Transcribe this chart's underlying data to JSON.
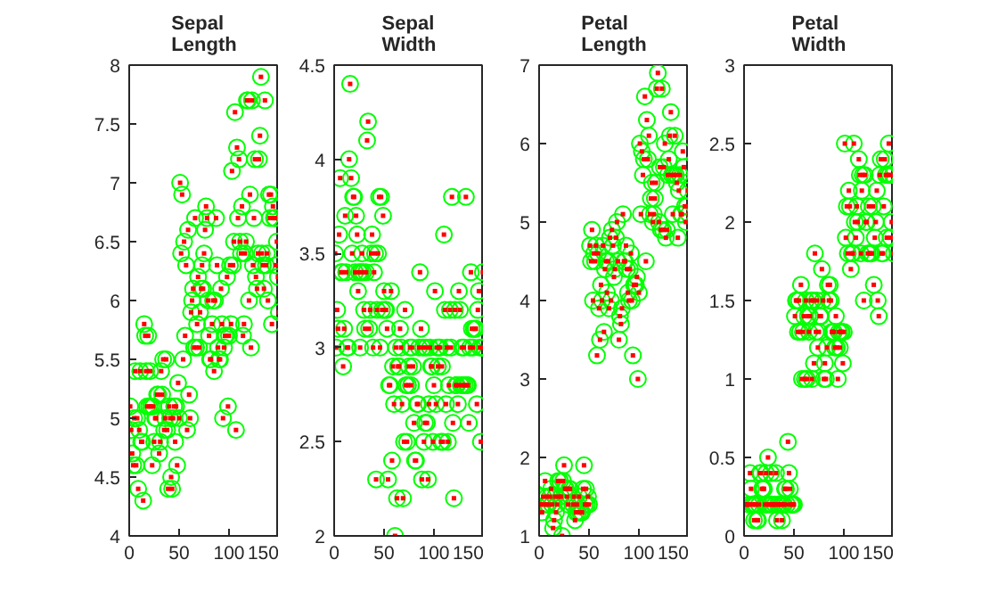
{
  "chart_data": [
    {
      "type": "scatter",
      "title": "Sepal Length",
      "xlim": [
        0,
        150
      ],
      "xticks": [
        0,
        50,
        100,
        150
      ],
      "ylim": [
        4,
        8
      ],
      "yticks": [
        4,
        4.5,
        5,
        5.5,
        6,
        6.5,
        7,
        7.5,
        8
      ],
      "grid": false,
      "x": [
        1,
        2,
        3,
        4,
        5,
        6,
        7,
        8,
        9,
        10,
        11,
        12,
        13,
        14,
        15,
        16,
        17,
        18,
        19,
        20,
        21,
        22,
        23,
        24,
        25,
        26,
        27,
        28,
        29,
        30,
        31,
        32,
        33,
        34,
        35,
        36,
        37,
        38,
        39,
        40,
        41,
        42,
        43,
        44,
        45,
        46,
        47,
        48,
        49,
        50,
        51,
        52,
        53,
        54,
        55,
        56,
        57,
        58,
        59,
        60,
        61,
        62,
        63,
        64,
        65,
        66,
        67,
        68,
        69,
        70,
        71,
        72,
        73,
        74,
        75,
        76,
        77,
        78,
        79,
        80,
        81,
        82,
        83,
        84,
        85,
        86,
        87,
        88,
        89,
        90,
        91,
        92,
        93,
        94,
        95,
        96,
        97,
        98,
        99,
        100,
        101,
        102,
        103,
        104,
        105,
        106,
        107,
        108,
        109,
        110,
        111,
        112,
        113,
        114,
        115,
        116,
        117,
        118,
        119,
        120,
        121,
        122,
        123,
        124,
        125,
        126,
        127,
        128,
        129,
        130,
        131,
        132,
        133,
        134,
        135,
        136,
        137,
        138,
        139,
        140,
        141,
        142,
        143,
        144,
        145,
        146,
        147,
        148,
        149,
        150
      ],
      "series": [
        {
          "color": "#00ff00",
          "marker": "circle",
          "values": [
            5.1,
            4.9,
            4.7,
            4.6,
            5.0,
            5.4,
            4.6,
            5.0,
            4.4,
            4.9,
            5.4,
            4.8,
            4.8,
            4.3,
            5.8,
            5.7,
            5.4,
            5.1,
            5.7,
            5.1,
            5.4,
            5.1,
            4.6,
            5.1,
            4.8,
            5.0,
            5.0,
            5.2,
            5.2,
            4.7,
            4.8,
            5.4,
            5.2,
            5.5,
            4.9,
            5.0,
            5.5,
            4.9,
            4.4,
            5.1,
            5.0,
            4.5,
            4.4,
            5.0,
            5.1,
            4.8,
            5.1,
            4.6,
            5.3,
            5.0,
            7.0,
            6.4,
            6.9,
            5.5,
            6.5,
            5.7,
            6.3,
            4.9,
            6.6,
            5.2,
            5.0,
            5.9,
            6.0,
            6.1,
            5.6,
            6.7,
            5.6,
            5.8,
            6.2,
            5.6,
            5.9,
            6.1,
            6.3,
            6.1,
            6.4,
            6.6,
            6.8,
            6.7,
            6.0,
            5.7,
            5.5,
            5.5,
            5.8,
            6.0,
            5.4,
            6.0,
            6.7,
            6.3,
            5.6,
            5.5,
            5.5,
            6.1,
            5.8,
            5.0,
            5.6,
            5.7,
            5.7,
            6.2,
            5.1,
            5.7,
            6.3,
            5.8,
            7.1,
            6.3,
            6.5,
            7.6,
            4.9,
            7.3,
            6.7,
            7.2,
            6.5,
            6.4,
            6.8,
            5.7,
            5.8,
            6.4,
            6.5,
            7.7,
            7.7,
            6.0,
            6.9,
            5.6,
            7.7,
            6.3,
            6.7,
            7.2,
            6.2,
            6.1,
            6.4,
            7.2,
            7.4,
            7.9,
            6.4,
            6.3,
            6.1,
            7.7,
            6.3,
            6.4,
            6.0,
            6.9,
            6.7,
            6.9,
            5.8,
            6.8,
            6.7,
            6.7,
            6.3,
            6.5,
            6.2,
            5.9
          ]
        },
        {
          "color": "#ff0000",
          "marker": "square",
          "values": [
            5.1,
            4.9,
            4.7,
            4.6,
            5.0,
            5.4,
            4.6,
            5.0,
            4.4,
            4.9,
            5.4,
            4.8,
            4.8,
            4.3,
            5.8,
            5.7,
            5.4,
            5.1,
            5.7,
            5.1,
            5.4,
            5.1,
            4.6,
            5.1,
            4.8,
            5.0,
            5.0,
            5.2,
            5.2,
            4.7,
            4.8,
            5.4,
            5.2,
            5.5,
            4.9,
            5.0,
            5.5,
            4.9,
            4.4,
            5.1,
            5.0,
            4.5,
            4.4,
            5.0,
            5.1,
            4.8,
            5.1,
            4.6,
            5.3,
            5.0,
            7.0,
            6.4,
            6.9,
            5.5,
            6.5,
            5.7,
            6.3,
            4.9,
            6.6,
            5.2,
            5.0,
            5.9,
            6.0,
            6.1,
            5.6,
            6.7,
            5.6,
            5.8,
            6.2,
            5.6,
            5.9,
            6.1,
            6.3,
            6.1,
            6.4,
            6.6,
            6.8,
            6.7,
            6.0,
            5.7,
            5.5,
            5.5,
            5.8,
            6.0,
            5.4,
            6.0,
            6.7,
            6.3,
            5.6,
            5.5,
            5.5,
            6.1,
            5.8,
            5.0,
            5.6,
            5.7,
            5.7,
            6.2,
            5.1,
            5.7,
            6.3,
            5.8,
            7.1,
            6.3,
            6.5,
            7.6,
            4.9,
            7.3,
            6.7,
            7.2,
            6.5,
            6.4,
            6.8,
            5.7,
            5.8,
            6.4,
            6.5,
            7.7,
            7.7,
            6.0,
            6.9,
            5.6,
            7.7,
            6.3,
            6.7,
            7.2,
            6.2,
            6.1,
            6.4,
            7.2,
            7.4,
            7.9,
            6.4,
            6.3,
            6.1,
            7.7,
            6.3,
            6.4,
            6.0,
            6.9,
            6.7,
            6.9,
            5.8,
            6.8,
            6.7,
            6.7,
            6.3,
            6.5,
            6.2,
            5.9
          ]
        }
      ]
    },
    {
      "type": "scatter",
      "title": "Sepal Width",
      "xlim": [
        0,
        150
      ],
      "xticks": [
        0,
        50,
        100,
        150
      ],
      "ylim": [
        2,
        4.5
      ],
      "yticks": [
        2,
        2.5,
        3,
        3.5,
        4,
        4.5
      ],
      "grid": false,
      "x": [
        1,
        2,
        3,
        4,
        5,
        6,
        7,
        8,
        9,
        10,
        11,
        12,
        13,
        14,
        15,
        16,
        17,
        18,
        19,
        20,
        21,
        22,
        23,
        24,
        25,
        26,
        27,
        28,
        29,
        30,
        31,
        32,
        33,
        34,
        35,
        36,
        37,
        38,
        39,
        40,
        41,
        42,
        43,
        44,
        45,
        46,
        47,
        48,
        49,
        50,
        51,
        52,
        53,
        54,
        55,
        56,
        57,
        58,
        59,
        60,
        61,
        62,
        63,
        64,
        65,
        66,
        67,
        68,
        69,
        70,
        71,
        72,
        73,
        74,
        75,
        76,
        77,
        78,
        79,
        80,
        81,
        82,
        83,
        84,
        85,
        86,
        87,
        88,
        89,
        90,
        91,
        92,
        93,
        94,
        95,
        96,
        97,
        98,
        99,
        100,
        101,
        102,
        103,
        104,
        105,
        106,
        107,
        108,
        109,
        110,
        111,
        112,
        113,
        114,
        115,
        116,
        117,
        118,
        119,
        120,
        121,
        122,
        123,
        124,
        125,
        126,
        127,
        128,
        129,
        130,
        131,
        132,
        133,
        134,
        135,
        136,
        137,
        138,
        139,
        140,
        141,
        142,
        143,
        144,
        145,
        146,
        147,
        148,
        149,
        150
      ],
      "series": [
        {
          "color": "#00ff00",
          "marker": "circle",
          "values": [
            3.5,
            3.0,
            3.2,
            3.1,
            3.6,
            3.9,
            3.4,
            3.4,
            2.9,
            3.1,
            3.7,
            3.4,
            3.0,
            3.0,
            4.0,
            4.4,
            3.9,
            3.5,
            3.8,
            3.8,
            3.4,
            3.7,
            3.6,
            3.3,
            3.4,
            3.0,
            3.4,
            3.5,
            3.4,
            3.2,
            3.1,
            3.4,
            4.1,
            4.2,
            3.1,
            3.2,
            3.5,
            3.6,
            3.0,
            3.4,
            3.5,
            2.3,
            3.2,
            3.5,
            3.8,
            3.0,
            3.8,
            3.2,
            3.7,
            3.3,
            3.2,
            3.2,
            3.1,
            2.3,
            2.8,
            2.8,
            3.3,
            2.4,
            2.9,
            2.7,
            2.0,
            3.0,
            2.2,
            2.9,
            2.9,
            3.1,
            3.0,
            2.7,
            2.2,
            2.5,
            3.2,
            2.8,
            2.5,
            2.8,
            2.9,
            3.0,
            2.8,
            3.0,
            2.9,
            2.6,
            2.4,
            2.4,
            2.7,
            2.7,
            3.0,
            3.4,
            3.1,
            2.3,
            3.0,
            2.5,
            2.6,
            3.0,
            2.6,
            2.3,
            2.7,
            3.0,
            2.9,
            2.9,
            2.5,
            2.8,
            3.3,
            2.7,
            3.0,
            2.9,
            3.0,
            3.0,
            2.5,
            2.9,
            2.5,
            3.6,
            3.2,
            2.7,
            3.0,
            2.5,
            2.8,
            3.2,
            3.0,
            3.8,
            2.6,
            2.2,
            3.2,
            2.8,
            2.8,
            2.7,
            3.3,
            3.2,
            2.8,
            3.0,
            2.8,
            3.0,
            2.8,
            3.8,
            2.8,
            2.8,
            2.6,
            3.0,
            3.4,
            3.1,
            3.0,
            3.1,
            3.1,
            3.1,
            2.7,
            3.2,
            3.3,
            3.0,
            2.5,
            3.0,
            3.4,
            3.0
          ]
        },
        {
          "color": "#ff0000",
          "marker": "square",
          "values": [
            3.5,
            3.0,
            3.2,
            3.1,
            3.6,
            3.9,
            3.4,
            3.4,
            2.9,
            3.1,
            3.7,
            3.4,
            3.0,
            3.0,
            4.0,
            4.4,
            3.9,
            3.5,
            3.8,
            3.8,
            3.4,
            3.7,
            3.6,
            3.3,
            3.4,
            3.0,
            3.4,
            3.5,
            3.4,
            3.2,
            3.1,
            3.4,
            4.1,
            4.2,
            3.1,
            3.2,
            3.5,
            3.6,
            3.0,
            3.4,
            3.5,
            2.3,
            3.2,
            3.5,
            3.8,
            3.0,
            3.8,
            3.2,
            3.7,
            3.3,
            3.2,
            3.2,
            3.1,
            2.3,
            2.8,
            2.8,
            3.3,
            2.4,
            2.9,
            2.7,
            2.0,
            3.0,
            2.2,
            2.9,
            2.9,
            3.1,
            3.0,
            2.7,
            2.2,
            2.5,
            3.2,
            2.8,
            2.5,
            2.8,
            2.9,
            3.0,
            2.8,
            3.0,
            2.9,
            2.6,
            2.4,
            2.4,
            2.7,
            2.7,
            3.0,
            3.4,
            3.1,
            2.3,
            3.0,
            2.5,
            2.6,
            3.0,
            2.6,
            2.3,
            2.7,
            3.0,
            2.9,
            2.9,
            2.5,
            2.8,
            3.3,
            2.7,
            3.0,
            2.9,
            3.0,
            3.0,
            2.5,
            2.9,
            2.5,
            3.6,
            3.2,
            2.7,
            3.0,
            2.5,
            2.8,
            3.2,
            3.0,
            3.8,
            2.6,
            2.2,
            3.2,
            2.8,
            2.8,
            2.7,
            3.3,
            3.2,
            2.8,
            3.0,
            2.8,
            3.0,
            2.8,
            3.8,
            2.8,
            2.8,
            2.6,
            3.0,
            3.4,
            3.1,
            3.0,
            3.1,
            3.1,
            3.1,
            2.7,
            3.2,
            3.3,
            3.0,
            2.5,
            3.0,
            3.4,
            3.0
          ]
        }
      ]
    },
    {
      "type": "scatter",
      "title": "Petal Length",
      "xlim": [
        0,
        150
      ],
      "xticks": [
        0,
        50,
        100,
        150
      ],
      "ylim": [
        1,
        7
      ],
      "yticks": [
        1,
        2,
        3,
        4,
        5,
        6,
        7
      ],
      "grid": false,
      "x": [
        1,
        2,
        3,
        4,
        5,
        6,
        7,
        8,
        9,
        10,
        11,
        12,
        13,
        14,
        15,
        16,
        17,
        18,
        19,
        20,
        21,
        22,
        23,
        24,
        25,
        26,
        27,
        28,
        29,
        30,
        31,
        32,
        33,
        34,
        35,
        36,
        37,
        38,
        39,
        40,
        41,
        42,
        43,
        44,
        45,
        46,
        47,
        48,
        49,
        50,
        51,
        52,
        53,
        54,
        55,
        56,
        57,
        58,
        59,
        60,
        61,
        62,
        63,
        64,
        65,
        66,
        67,
        68,
        69,
        70,
        71,
        72,
        73,
        74,
        75,
        76,
        77,
        78,
        79,
        80,
        81,
        82,
        83,
        84,
        85,
        86,
        87,
        88,
        89,
        90,
        91,
        92,
        93,
        94,
        95,
        96,
        97,
        98,
        99,
        100,
        101,
        102,
        103,
        104,
        105,
        106,
        107,
        108,
        109,
        110,
        111,
        112,
        113,
        114,
        115,
        116,
        117,
        118,
        119,
        120,
        121,
        122,
        123,
        124,
        125,
        126,
        127,
        128,
        129,
        130,
        131,
        132,
        133,
        134,
        135,
        136,
        137,
        138,
        139,
        140,
        141,
        142,
        143,
        144,
        145,
        146,
        147,
        148,
        149,
        150
      ],
      "series": [
        {
          "color": "#00ff00",
          "marker": "circle",
          "values": [
            null,
            null,
            1.3,
            1.5,
            null,
            1.7,
            1.4,
            1.5,
            1.4,
            null,
            1.5,
            1.6,
            1.4,
            1.1,
            1.2,
            1.5,
            1.3,
            1.4,
            1.7,
            null,
            1.7,
            1.5,
            1.0,
            1.7,
            1.9,
            1.6,
            1.6,
            1.5,
            1.4,
            1.6,
            1.6,
            null,
            null,
            1.4,
            null,
            1.2,
            1.3,
            1.4,
            1.3,
            1.5,
            1.3,
            1.3,
            1.3,
            1.6,
            1.9,
            1.4,
            1.6,
            1.4,
            1.5,
            1.4,
            4.7,
            4.5,
            4.9,
            4.0,
            4.6,
            4.5,
            4.7,
            3.3,
            4.6,
            3.9,
            3.5,
            4.2,
            4.0,
            4.7,
            3.6,
            4.4,
            4.5,
            4.1,
            4.5,
            3.9,
            4.8,
            4.0,
            4.9,
            4.7,
            4.3,
            4.4,
            4.8,
            5.0,
            4.5,
            3.5,
            3.8,
            3.7,
            3.9,
            5.1,
            4.5,
            4.5,
            4.7,
            4.4,
            4.1,
            4.0,
            4.4,
            4.6,
            4.0,
            3.3,
            4.2,
            4.2,
            4.2,
            4.3,
            3.0,
            4.1,
            6.0,
            5.1,
            5.9,
            5.6,
            5.8,
            6.6,
            4.5,
            6.3,
            5.8,
            6.1,
            5.1,
            5.3,
            5.5,
            5.0,
            5.1,
            5.3,
            5.5,
            6.7,
            6.9,
            5.0,
            5.7,
            4.9,
            6.7,
            4.9,
            5.7,
            6.0,
            4.8,
            4.9,
            5.6,
            5.8,
            6.1,
            6.4,
            5.6,
            5.1,
            5.6,
            6.1,
            5.6,
            5.5,
            4.8,
            5.4,
            5.6,
            5.1,
            5.1,
            5.9,
            5.7,
            5.2,
            5.0,
            5.2,
            5.4,
            5.1
          ]
        },
        {
          "color": "#ff0000",
          "marker": "square",
          "values": [
            1.4,
            1.4,
            1.3,
            1.5,
            1.4,
            1.7,
            1.4,
            1.5,
            1.4,
            null,
            1.5,
            1.6,
            1.4,
            1.1,
            1.2,
            1.5,
            1.3,
            1.4,
            1.7,
            1.5,
            1.7,
            1.5,
            1.0,
            1.7,
            1.9,
            1.6,
            1.6,
            1.5,
            1.4,
            1.6,
            1.6,
            null,
            null,
            1.4,
            1.5,
            1.2,
            1.3,
            1.4,
            1.3,
            1.5,
            1.3,
            1.3,
            1.3,
            1.6,
            1.9,
            1.4,
            1.6,
            1.4,
            1.5,
            1.4,
            4.7,
            4.5,
            4.9,
            4.0,
            4.6,
            4.5,
            4.7,
            3.3,
            4.6,
            3.9,
            3.5,
            4.2,
            4.0,
            4.7,
            3.6,
            4.4,
            4.5,
            4.1,
            4.5,
            3.9,
            4.8,
            4.0,
            4.9,
            4.7,
            4.3,
            4.4,
            4.8,
            5.0,
            4.5,
            3.5,
            3.8,
            3.7,
            3.9,
            5.1,
            4.5,
            4.5,
            4.7,
            4.4,
            4.1,
            4.0,
            4.4,
            4.6,
            4.0,
            3.3,
            4.2,
            4.2,
            4.2,
            4.3,
            3.0,
            4.1,
            6.0,
            5.1,
            5.9,
            5.6,
            5.8,
            6.6,
            4.5,
            6.3,
            5.8,
            6.1,
            5.1,
            5.3,
            5.5,
            5.0,
            5.1,
            5.3,
            5.5,
            6.7,
            6.9,
            5.0,
            5.7,
            4.9,
            6.7,
            4.9,
            5.7,
            6.0,
            4.8,
            4.9,
            5.6,
            5.8,
            6.1,
            6.4,
            5.6,
            5.1,
            5.6,
            6.1,
            5.6,
            5.5,
            4.8,
            5.4,
            5.6,
            5.1,
            5.1,
            5.9,
            5.7,
            5.2,
            5.0,
            5.2,
            5.4,
            5.1
          ]
        }
      ]
    },
    {
      "type": "scatter",
      "title": "Petal Width",
      "xlim": [
        0,
        150
      ],
      "xticks": [
        0,
        50,
        100,
        150
      ],
      "ylim": [
        0,
        3
      ],
      "yticks": [
        0,
        0.5,
        1,
        1.5,
        2,
        2.5,
        3
      ],
      "grid": false,
      "x": [
        1,
        2,
        3,
        4,
        5,
        6,
        7,
        8,
        9,
        10,
        11,
        12,
        13,
        14,
        15,
        16,
        17,
        18,
        19,
        20,
        21,
        22,
        23,
        24,
        25,
        26,
        27,
        28,
        29,
        30,
        31,
        32,
        33,
        34,
        35,
        36,
        37,
        38,
        39,
        40,
        41,
        42,
        43,
        44,
        45,
        46,
        47,
        48,
        49,
        50,
        51,
        52,
        53,
        54,
        55,
        56,
        57,
        58,
        59,
        60,
        61,
        62,
        63,
        64,
        65,
        66,
        67,
        68,
        69,
        70,
        71,
        72,
        73,
        74,
        75,
        76,
        77,
        78,
        79,
        80,
        81,
        82,
        83,
        84,
        85,
        86,
        87,
        88,
        89,
        90,
        91,
        92,
        93,
        94,
        95,
        96,
        97,
        98,
        99,
        100,
        101,
        102,
        103,
        104,
        105,
        106,
        107,
        108,
        109,
        110,
        111,
        112,
        113,
        114,
        115,
        116,
        117,
        118,
        119,
        120,
        121,
        122,
        123,
        124,
        125,
        126,
        127,
        128,
        129,
        130,
        131,
        132,
        133,
        134,
        135,
        136,
        137,
        138,
        139,
        140,
        141,
        142,
        143,
        144,
        145,
        146,
        147,
        148,
        149,
        150
      ],
      "series": [
        {
          "color": "#00ff00",
          "marker": "circle",
          "values": [
            null,
            null,
            null,
            null,
            0.2,
            0.4,
            0.3,
            0.2,
            0.2,
            0.1,
            0.2,
            0.2,
            0.1,
            0.1,
            0.2,
            0.4,
            0.4,
            0.3,
            0.3,
            0.3,
            0.2,
            0.4,
            0.2,
            0.5,
            null,
            0.2,
            0.4,
            0.2,
            null,
            null,
            0.2,
            0.4,
            0.1,
            0.2,
            null,
            null,
            0.2,
            0.1,
            0.2,
            0.2,
            0.3,
            0.3,
            0.2,
            0.6,
            0.4,
            0.3,
            0.2,
            0.2,
            0.2,
            0.2,
            1.4,
            1.5,
            1.5,
            1.3,
            1.5,
            1.3,
            1.6,
            1.0,
            1.3,
            1.4,
            1.0,
            1.5,
            1.0,
            1.4,
            1.3,
            1.4,
            1.5,
            1.0,
            1.5,
            1.1,
            1.8,
            1.3,
            1.5,
            1.2,
            1.3,
            1.4,
            1.4,
            1.7,
            1.5,
            1.0,
            1.1,
            1.0,
            1.2,
            1.6,
            1.5,
            1.6,
            1.5,
            1.3,
            1.3,
            1.3,
            1.2,
            1.4,
            1.2,
            1.0,
            1.3,
            1.2,
            1.3,
            1.3,
            1.1,
            1.3,
            2.5,
            1.9,
            2.1,
            1.8,
            2.2,
            2.1,
            1.7,
            1.8,
            1.8,
            2.5,
            2.0,
            1.9,
            2.1,
            2.0,
            2.4,
            2.3,
            1.8,
            2.2,
            2.3,
            1.5,
            2.3,
            2.0,
            2.0,
            1.8,
            2.1,
            1.8,
            1.8,
            1.8,
            2.1,
            1.6,
            1.9,
            2.0,
            2.2,
            1.5,
            1.4,
            2.3,
            2.4,
            1.8,
            1.8,
            2.1,
            2.4,
            2.3,
            1.9,
            2.3,
            2.5,
            2.3,
            1.9,
            2.0,
            2.3,
            1.8
          ]
        },
        {
          "color": "#ff0000",
          "marker": "square",
          "values": [
            0.2,
            0.2,
            0.2,
            0.2,
            0.2,
            0.4,
            0.3,
            0.2,
            0.2,
            0.1,
            0.2,
            0.2,
            0.1,
            0.1,
            0.2,
            0.4,
            0.4,
            0.3,
            0.3,
            0.3,
            0.2,
            0.4,
            0.2,
            0.5,
            0.2,
            0.2,
            0.4,
            0.2,
            0.2,
            0.2,
            0.2,
            0.4,
            0.1,
            0.2,
            0.2,
            0.2,
            0.2,
            0.1,
            0.2,
            0.2,
            0.3,
            0.3,
            0.2,
            0.6,
            0.4,
            0.3,
            0.2,
            0.2,
            0.2,
            0.2,
            1.4,
            1.5,
            1.5,
            1.3,
            1.5,
            1.3,
            1.6,
            1.0,
            1.3,
            1.4,
            1.0,
            1.5,
            1.0,
            1.4,
            1.3,
            1.4,
            1.5,
            1.0,
            1.5,
            1.1,
            1.8,
            1.3,
            1.5,
            1.2,
            1.3,
            1.4,
            1.4,
            1.7,
            1.5,
            1.0,
            1.1,
            1.0,
            1.2,
            1.6,
            1.5,
            1.6,
            1.5,
            1.3,
            1.3,
            1.3,
            1.2,
            1.4,
            1.2,
            1.0,
            1.3,
            1.2,
            1.3,
            1.3,
            1.1,
            1.3,
            2.5,
            1.9,
            2.1,
            1.8,
            2.2,
            2.1,
            1.7,
            1.8,
            1.8,
            2.5,
            2.0,
            1.9,
            2.1,
            2.0,
            2.4,
            2.3,
            1.8,
            2.2,
            2.3,
            1.5,
            2.3,
            2.0,
            2.0,
            1.8,
            2.1,
            1.8,
            1.8,
            1.8,
            2.1,
            1.6,
            1.9,
            2.0,
            2.2,
            1.5,
            1.4,
            2.3,
            2.4,
            1.8,
            1.8,
            2.1,
            2.4,
            2.3,
            1.9,
            2.3,
            2.5,
            2.3,
            1.9,
            2.0,
            2.3,
            1.8
          ]
        }
      ]
    }
  ]
}
